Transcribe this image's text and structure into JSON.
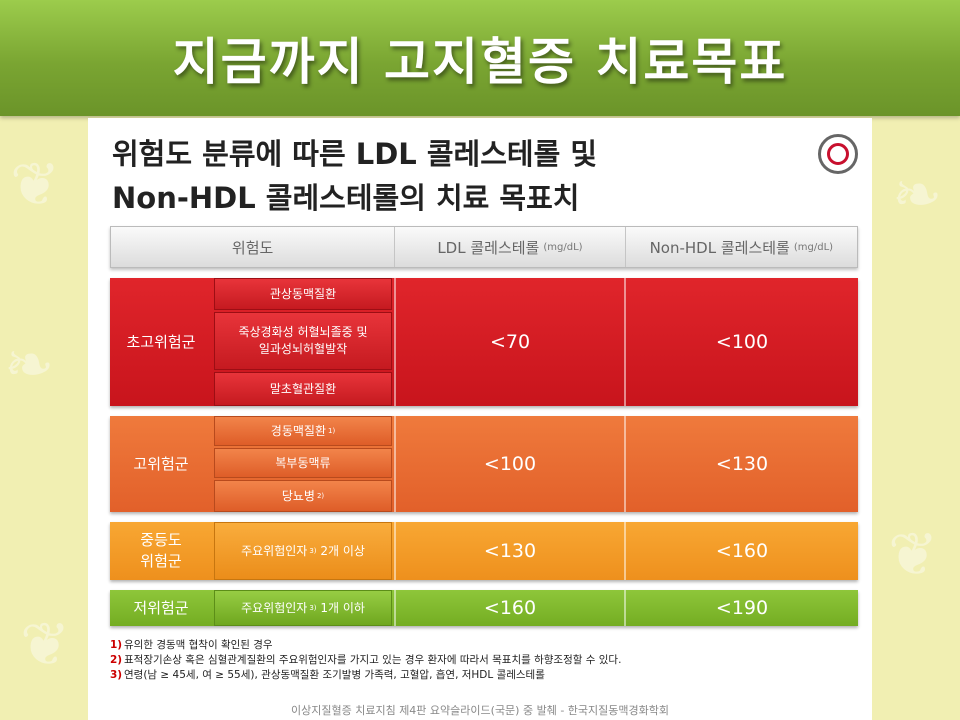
{
  "banner": {
    "title": "지금까지 고지혈증 치료목표"
  },
  "slide": {
    "title_line1": "위험도 분류에 따른 LDL 콜레스테롤 및",
    "title_line2": "Non-HDL 콜레스테롤의 치료 목표치",
    "seal_icon": "society-seal-icon"
  },
  "table": {
    "headers": {
      "risk": "위험도",
      "ldl": "LDL 콜레스테롤",
      "ldl_unit": "(mg/dL)",
      "nonhdl": "Non-HDL 콜레스테롤",
      "nonhdl_unit": "(mg/dL)"
    },
    "groups": [
      {
        "label": "초고위험군",
        "subs": [
          "관상동맥질환",
          "죽상경화성 허혈뇌졸중 및\n일과성뇌허혈발작",
          "말초혈관질환"
        ],
        "ldl": "<70",
        "nonhdl": "<100",
        "color": "#d41c22"
      },
      {
        "label": "고위험군",
        "subs": [
          "경동맥질환",
          "복부동맥류",
          "당뇨병"
        ],
        "sub_sups": [
          "1)",
          "",
          "2)"
        ],
        "ldl": "<100",
        "nonhdl": "<130",
        "color": "#e8682f"
      },
      {
        "label": "중등도\n위험군",
        "subs": [
          "주요위험인자 2개 이상"
        ],
        "sub_prefix": "주요위험인자",
        "sub_sup": "3)",
        "sub_suffix": "2개 이상",
        "ldl": "<130",
        "nonhdl": "<160",
        "color": "#f39a25"
      },
      {
        "label": "저위험군",
        "sub_prefix": "주요위험인자",
        "sub_sup": "3)",
        "sub_suffix": "1개 이하",
        "ldl": "<160",
        "nonhdl": "<190",
        "color": "#80b82b"
      }
    ]
  },
  "notes": [
    {
      "num": "1)",
      "text": "유의한 경동맥 협착이 확인된 경우"
    },
    {
      "num": "2)",
      "text": "표적장기손상 혹은 심혈관계질환의 주요위험인자를 가지고 있는 경우 환자에 따라서 목표치를 하향조정할 수 있다."
    },
    {
      "num": "3)",
      "text": "연령(남 ≥ 45세, 여 ≥ 55세), 관상동맥질환 조기발병 가족력, 고혈압, 흡연, 저HDL 콜레스테롤"
    }
  ],
  "source": "이상지질혈증 치료지침 제4판 요약슬라이드(국문) 중 발췌 - 한국지질동맥경화학회"
}
